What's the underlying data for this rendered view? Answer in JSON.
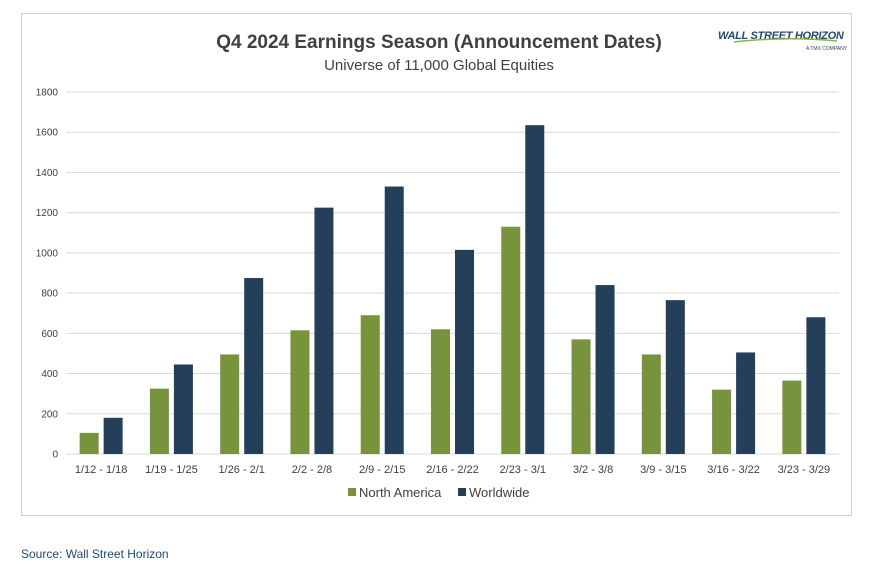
{
  "chart_data": {
    "type": "bar",
    "title": "Q4 2024 Earnings Season (Announcement Dates)",
    "subtitle": "Universe of 11,000 Global Equities",
    "categories": [
      "1/12 - 1/18",
      "1/19 - 1/25",
      "1/26 - 2/1",
      "2/2 - 2/8",
      "2/9 - 2/15",
      "2/16 - 2/22",
      "2/23 - 3/1",
      "3/2 - 3/8",
      "3/9 - 3/15",
      "3/16 - 3/22",
      "3/23 - 3/29"
    ],
    "series": [
      {
        "name": "North America",
        "color": "#77933c",
        "values": [
          105,
          325,
          495,
          615,
          690,
          620,
          1130,
          570,
          495,
          320,
          365
        ]
      },
      {
        "name": "Worldwide",
        "color": "#243f5a",
        "values": [
          180,
          445,
          875,
          1225,
          1330,
          1015,
          1635,
          840,
          765,
          505,
          680
        ]
      }
    ],
    "ylim": [
      0,
      1800
    ],
    "yticks": [
      0,
      200,
      400,
      600,
      800,
      1000,
      1200,
      1400,
      1600,
      1800
    ],
    "grid": true,
    "legend": "bottom"
  },
  "logo": {
    "name": "WALL STREET HORIZON",
    "tagline": "A TMX COMPANY"
  },
  "footer": {
    "source": "Source: Wall Street Horizon"
  }
}
